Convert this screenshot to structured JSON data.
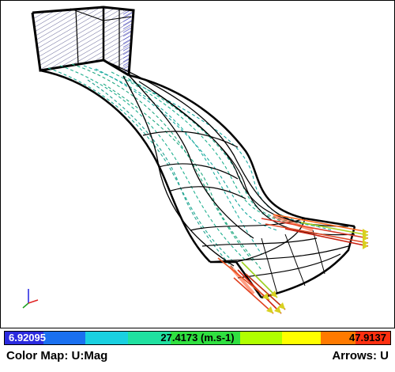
{
  "viewport": {
    "description_icon": "triad-axes-icon"
  },
  "colorbar": {
    "min_label": "6.92095",
    "mid_label": "27.4173 (m.s-1)",
    "max_label": "47.9137",
    "colors": [
      "#2b2bdf",
      "#1a70f0",
      "#1ad0e0",
      "#20e0a0",
      "#30e040",
      "#b0ff00",
      "#ffff00",
      "#ff7a00",
      "#ff3010"
    ]
  },
  "footer": {
    "color_map": "Color Map: U:Mag",
    "arrows": "Arrows: U"
  }
}
